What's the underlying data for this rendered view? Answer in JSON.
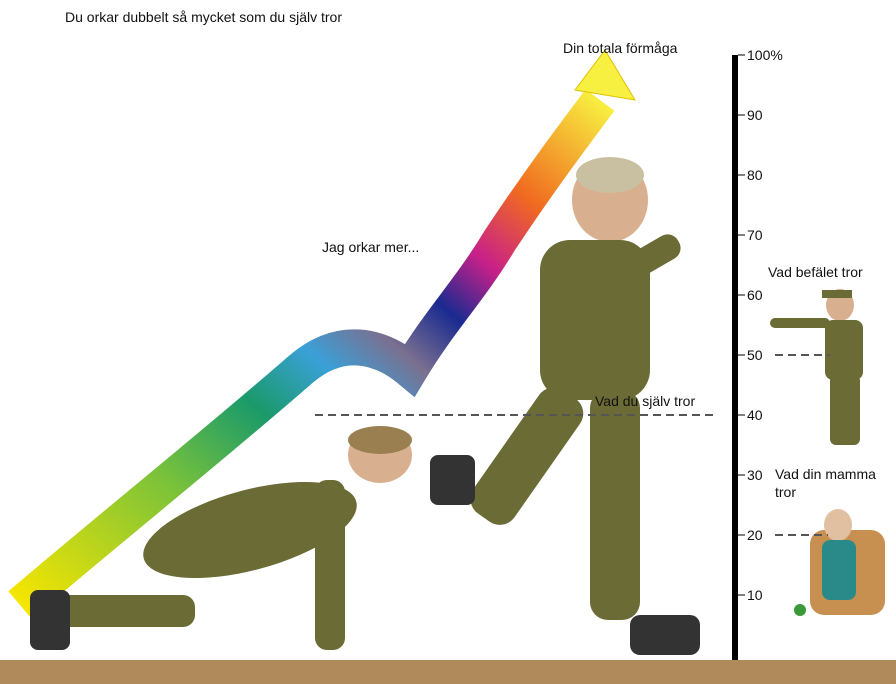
{
  "title": "Du orkar dubbelt så mycket som du själv tror",
  "scale": {
    "lim": [
      0,
      100
    ],
    "ticks": [
      10,
      20,
      30,
      40,
      50,
      60,
      70,
      80,
      90,
      {
        "value": 100,
        "label": "100%"
      }
    ]
  },
  "labels": {
    "top": "Din totala förmåga",
    "middle": "Jag orkar mer..."
  },
  "annotations": [
    {
      "lines": [
        "Vad du själv tror"
      ],
      "level": 40
    },
    {
      "lines": [
        "Vad befälet tror"
      ],
      "level": 50
    },
    {
      "lines": [
        "Vad din mamma",
        "tror"
      ],
      "level": 20
    }
  ]
}
